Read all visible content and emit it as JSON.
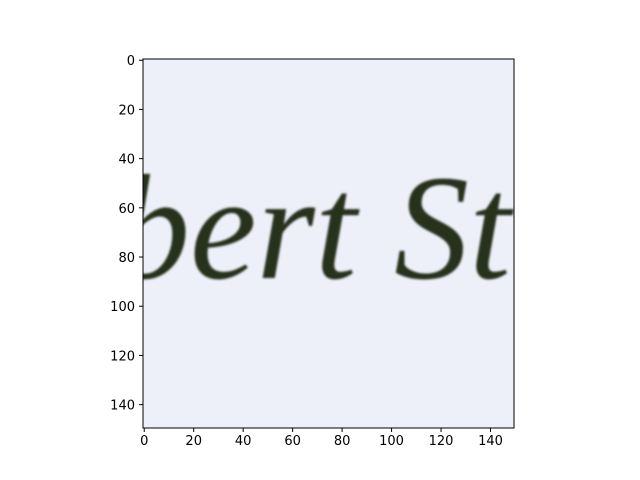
{
  "chart_data": {
    "type": "image",
    "image_text": "bert St",
    "xlim": [
      -0.5,
      149.5
    ],
    "ylim": [
      149.5,
      -0.5
    ],
    "xticks": [
      0,
      20,
      40,
      60,
      80,
      100,
      120,
      140
    ],
    "yticks": [
      0,
      20,
      40,
      60,
      80,
      100,
      120,
      140
    ]
  }
}
